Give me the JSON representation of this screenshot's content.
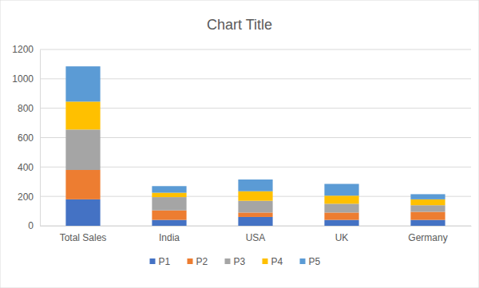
{
  "chart_data": {
    "type": "bar",
    "title": "Chart Title",
    "stacked": true,
    "grid": true,
    "legend": "bottom",
    "categories": [
      "Total Sales",
      "India",
      "USA",
      "UK",
      "Germany"
    ],
    "series": [
      {
        "name": "P1",
        "color": "#4472c4",
        "values": [
          180,
          40,
          60,
          40,
          40
        ]
      },
      {
        "name": "P2",
        "color": "#ed7d31",
        "values": [
          200,
          65,
          30,
          50,
          55
        ]
      },
      {
        "name": "P3",
        "color": "#a5a5a5",
        "values": [
          275,
          90,
          80,
          60,
          45
        ]
      },
      {
        "name": "P4",
        "color": "#ffc000",
        "values": [
          190,
          30,
          65,
          55,
          40
        ]
      },
      {
        "name": "P5",
        "color": "#5b9bd5",
        "values": [
          240,
          45,
          80,
          80,
          35
        ]
      }
    ],
    "ylim": [
      0,
      1200
    ],
    "yticks": [
      0,
      200,
      400,
      600,
      800,
      1000,
      1200
    ]
  }
}
